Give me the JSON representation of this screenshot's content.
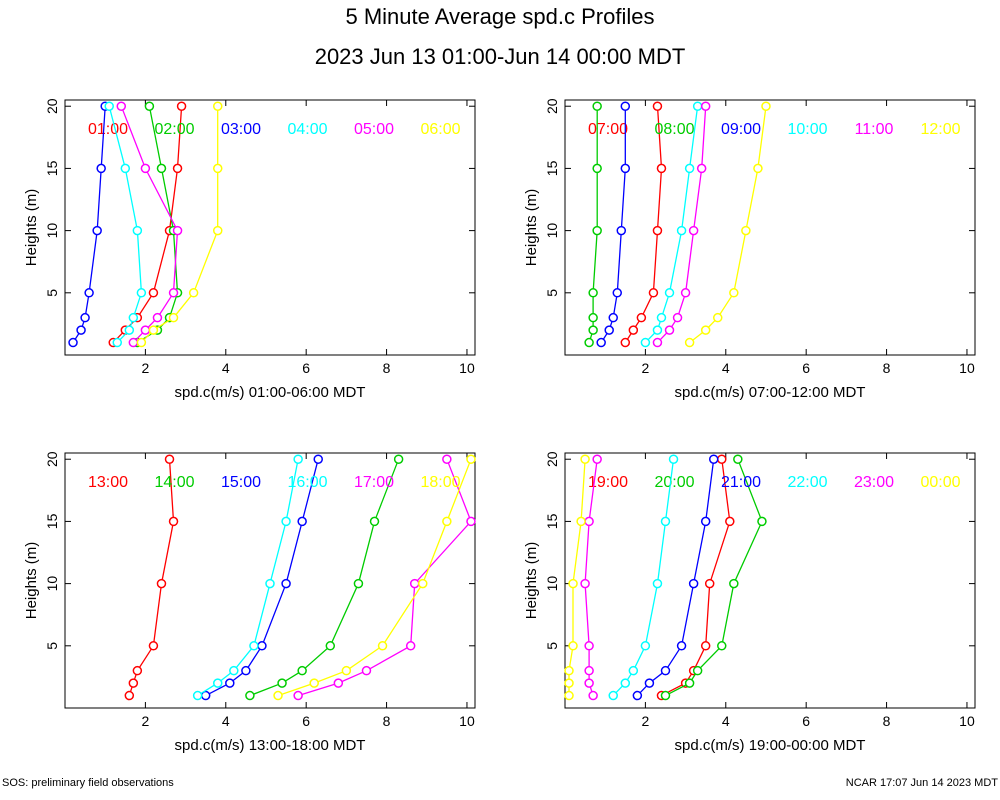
{
  "page": {
    "title": "5 Minute Average spd.c Profiles",
    "subtitle": "2023 Jun 13 01:00-Jun 14 00:00 MDT",
    "footer_left": "SOS: preliminary field observations",
    "footer_right": "NCAR 17:07 Jun 14 2023 MDT"
  },
  "chart_data": [
    {
      "type": "line",
      "xlabel": "spd.c(m/s) 01:00-06:00 MDT",
      "ylabel": "Heights (m)",
      "xlim": [
        0,
        10.2
      ],
      "ylim": [
        0,
        20.5
      ],
      "xticks": [
        2,
        4,
        6,
        8,
        10
      ],
      "yticks": [
        5,
        10,
        15,
        20
      ],
      "heights": [
        1,
        2,
        3,
        5,
        10,
        15,
        20
      ],
      "series": [
        {
          "name": "01:00",
          "color": "#ff0000",
          "x": [
            1.2,
            1.5,
            1.8,
            2.2,
            2.6,
            2.8,
            2.9
          ]
        },
        {
          "name": "02:00",
          "color": "#00cc00",
          "x": [
            1.8,
            2.3,
            2.6,
            2.8,
            2.7,
            2.4,
            2.1
          ]
        },
        {
          "name": "03:00",
          "color": "#0000ff",
          "x": [
            0.2,
            0.4,
            0.5,
            0.6,
            0.8,
            0.9,
            1.0
          ]
        },
        {
          "name": "04:00",
          "color": "#00ffff",
          "x": [
            1.3,
            1.6,
            1.7,
            1.9,
            1.8,
            1.5,
            1.1
          ]
        },
        {
          "name": "05:00",
          "color": "#ff00ff",
          "x": [
            1.7,
            2.0,
            2.3,
            2.7,
            2.8,
            2.0,
            1.4
          ]
        },
        {
          "name": "06:00",
          "color": "#ffff00",
          "x": [
            1.9,
            2.2,
            2.7,
            3.2,
            3.8,
            3.8,
            3.8
          ]
        }
      ]
    },
    {
      "type": "line",
      "xlabel": "spd.c(m/s) 07:00-12:00 MDT",
      "ylabel": "Heights (m)",
      "xlim": [
        0,
        10.2
      ],
      "ylim": [
        0,
        20.5
      ],
      "xticks": [
        2,
        4,
        6,
        8,
        10
      ],
      "yticks": [
        5,
        10,
        15,
        20
      ],
      "heights": [
        1,
        2,
        3,
        5,
        10,
        15,
        20
      ],
      "series": [
        {
          "name": "07:00",
          "color": "#ff0000",
          "x": [
            1.5,
            1.7,
            1.9,
            2.2,
            2.3,
            2.4,
            2.3
          ]
        },
        {
          "name": "08:00",
          "color": "#00cc00",
          "x": [
            0.6,
            0.7,
            0.7,
            0.7,
            0.8,
            0.8,
            0.8
          ]
        },
        {
          "name": "09:00",
          "color": "#0000ff",
          "x": [
            0.9,
            1.1,
            1.2,
            1.3,
            1.4,
            1.5,
            1.5
          ]
        },
        {
          "name": "10:00",
          "color": "#00ffff",
          "x": [
            2.0,
            2.3,
            2.4,
            2.6,
            2.9,
            3.1,
            3.3
          ]
        },
        {
          "name": "11:00",
          "color": "#ff00ff",
          "x": [
            2.3,
            2.6,
            2.8,
            3.0,
            3.2,
            3.4,
            3.5
          ]
        },
        {
          "name": "12:00",
          "color": "#ffff00",
          "x": [
            3.1,
            3.5,
            3.8,
            4.2,
            4.5,
            4.8,
            5.0
          ]
        }
      ]
    },
    {
      "type": "line",
      "xlabel": "spd.c(m/s) 13:00-18:00 MDT",
      "ylabel": "Heights (m)",
      "xlim": [
        0,
        10.2
      ],
      "ylim": [
        0,
        20.5
      ],
      "xticks": [
        2,
        4,
        6,
        8,
        10
      ],
      "yticks": [
        5,
        10,
        15,
        20
      ],
      "heights": [
        1,
        2,
        3,
        5,
        10,
        15,
        20
      ],
      "series": [
        {
          "name": "13:00",
          "color": "#ff0000",
          "x": [
            1.6,
            1.7,
            1.8,
            2.2,
            2.4,
            2.7,
            2.6
          ]
        },
        {
          "name": "14:00",
          "color": "#00cc00",
          "x": [
            4.6,
            5.4,
            5.9,
            6.6,
            7.3,
            7.7,
            8.3
          ]
        },
        {
          "name": "15:00",
          "color": "#0000ff",
          "x": [
            3.5,
            4.1,
            4.5,
            4.9,
            5.5,
            5.9,
            6.3
          ]
        },
        {
          "name": "16:00",
          "color": "#00ffff",
          "x": [
            3.3,
            3.8,
            4.2,
            4.7,
            5.1,
            5.5,
            5.8
          ]
        },
        {
          "name": "17:00",
          "color": "#ff00ff",
          "x": [
            5.8,
            6.8,
            7.5,
            8.6,
            8.7,
            10.1,
            9.5
          ]
        },
        {
          "name": "18:00",
          "color": "#ffff00",
          "x": [
            5.3,
            6.2,
            7.0,
            7.9,
            8.9,
            9.5,
            10.1
          ]
        }
      ]
    },
    {
      "type": "line",
      "xlabel": "spd.c(m/s) 19:00-00:00 MDT",
      "ylabel": "Heights (m)",
      "xlim": [
        0,
        10.2
      ],
      "ylim": [
        0,
        20.5
      ],
      "xticks": [
        2,
        4,
        6,
        8,
        10
      ],
      "yticks": [
        5,
        10,
        15,
        20
      ],
      "heights": [
        1,
        2,
        3,
        5,
        10,
        15,
        20
      ],
      "series": [
        {
          "name": "19:00",
          "color": "#ff0000",
          "x": [
            2.4,
            3.0,
            3.2,
            3.5,
            3.6,
            4.1,
            3.9
          ]
        },
        {
          "name": "20:00",
          "color": "#00cc00",
          "x": [
            2.5,
            3.1,
            3.3,
            3.9,
            4.2,
            4.9,
            4.3
          ]
        },
        {
          "name": "21:00",
          "color": "#0000ff",
          "x": [
            1.8,
            2.1,
            2.5,
            2.9,
            3.2,
            3.5,
            3.7
          ]
        },
        {
          "name": "22:00",
          "color": "#00ffff",
          "x": [
            1.2,
            1.5,
            1.7,
            2.0,
            2.3,
            2.5,
            2.7
          ]
        },
        {
          "name": "23:00",
          "color": "#ff00ff",
          "x": [
            0.7,
            0.6,
            0.6,
            0.6,
            0.5,
            0.6,
            0.8
          ]
        },
        {
          "name": "00:00",
          "color": "#ffff00",
          "x": [
            0.1,
            0.1,
            0.1,
            0.2,
            0.2,
            0.4,
            0.5
          ]
        }
      ]
    }
  ]
}
